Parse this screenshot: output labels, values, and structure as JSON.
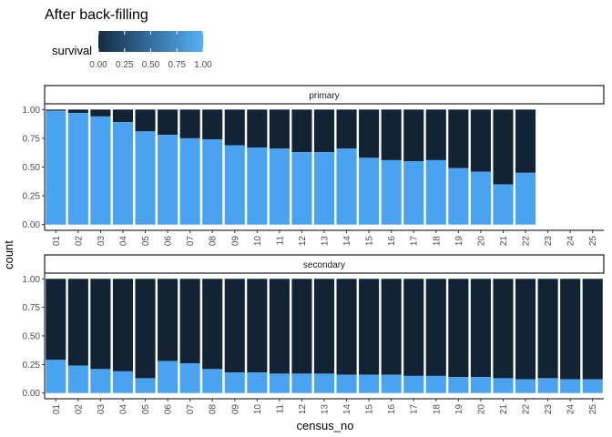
{
  "chart_data": {
    "type": "bar",
    "stacked": true,
    "position": "fill",
    "title": "After back-filling",
    "xlabel": "census_no",
    "ylabel": "count",
    "ylim": [
      0,
      1
    ],
    "yticks": [
      "0.00",
      "0.25",
      "0.50",
      "0.75",
      "1.00"
    ],
    "legend": {
      "title": "survival",
      "placement": "top-left",
      "type": "colorbar",
      "ticks": [
        "0.00",
        "0.25",
        "0.50",
        "0.75",
        "1.00"
      ],
      "low_color": "#132B43",
      "high_color": "#56B1F7"
    },
    "fill_colors": {
      "survived": "#4aa3f0",
      "not_survived": "#132336"
    },
    "categories": [
      "01",
      "02",
      "03",
      "04",
      "05",
      "06",
      "07",
      "08",
      "09",
      "10",
      "11",
      "12",
      "13",
      "14",
      "15",
      "16",
      "17",
      "18",
      "19",
      "20",
      "21",
      "22",
      "23",
      "24",
      "25"
    ],
    "facets": [
      {
        "label": "primary",
        "survival_values": [
          0.99,
          0.97,
          0.94,
          0.89,
          0.81,
          0.78,
          0.75,
          0.74,
          0.69,
          0.67,
          0.66,
          0.63,
          0.63,
          0.66,
          0.58,
          0.56,
          0.55,
          0.56,
          0.49,
          0.46,
          0.35,
          0.45,
          null,
          null,
          null
        ]
      },
      {
        "label": "secondary",
        "survival_values": [
          0.29,
          0.24,
          0.21,
          0.19,
          0.13,
          0.28,
          0.26,
          0.21,
          0.18,
          0.18,
          0.17,
          0.17,
          0.17,
          0.16,
          0.16,
          0.16,
          0.15,
          0.15,
          0.14,
          0.14,
          0.13,
          0.12,
          0.13,
          0.12,
          0.12
        ]
      }
    ]
  }
}
